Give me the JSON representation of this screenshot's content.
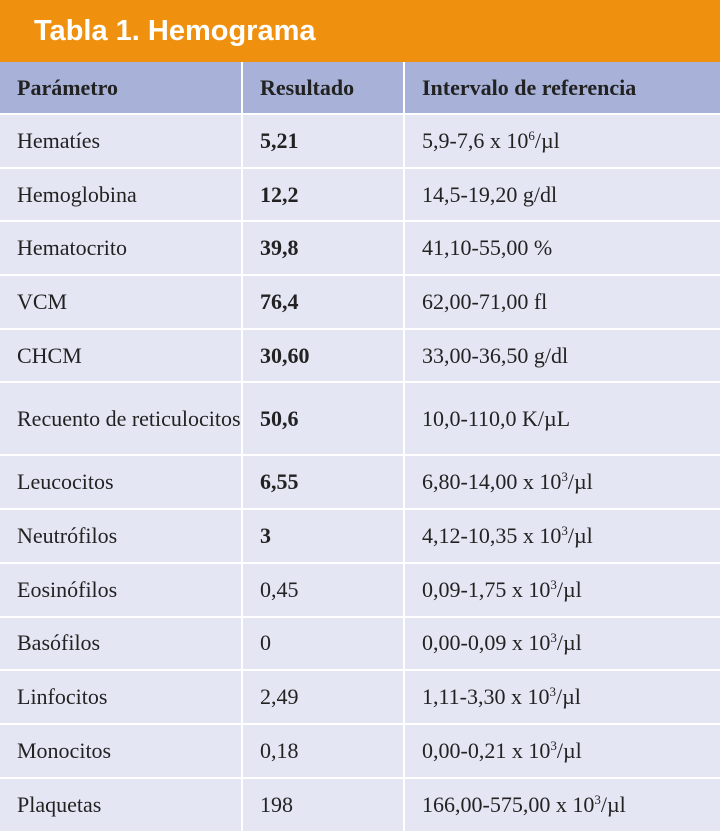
{
  "title": "Tabla 1. Hemograma",
  "headers": [
    "Parámetro",
    "Resultado",
    "Intervalo de referencia"
  ],
  "rows": [
    {
      "param": "Hematíes",
      "result": "5,21",
      "bold": true,
      "ref": "5,9-7,6 x 10",
      "exp": "6",
      "unit": "/µl"
    },
    {
      "param": "Hemoglobina",
      "result": "12,2",
      "bold": true,
      "ref": "14,5-19,20 g/dl",
      "exp": "",
      "unit": ""
    },
    {
      "param": "Hematocrito",
      "result": "39,8",
      "bold": true,
      "ref": "41,10-55,00 %",
      "exp": "",
      "unit": ""
    },
    {
      "param": "VCM",
      "result": "76,4",
      "bold": true,
      "ref": "62,00-71,00 fl",
      "exp": "",
      "unit": ""
    },
    {
      "param": "CHCM",
      "result": "30,60",
      "bold": true,
      "ref": "33,00-36,50 g/dl",
      "exp": "",
      "unit": ""
    },
    {
      "param": "Recuento de reticulocitos",
      "result": "50,6",
      "bold": true,
      "ref": "10,0-110,0 K/µL",
      "exp": "",
      "unit": "",
      "tall": true
    },
    {
      "param": "Leucocitos",
      "result": "6,55",
      "bold": true,
      "ref": "6,80-14,00 x 10",
      "exp": "3",
      "unit": "/µl"
    },
    {
      "param": "Neutrófilos",
      "result": "3",
      "bold": true,
      "ref": "4,12-10,35 x 10",
      "exp": "3",
      "unit": "/µl"
    },
    {
      "param": "Eosinófilos",
      "result": "0,45",
      "bold": false,
      "ref": "0,09-1,75 x 10",
      "exp": "3",
      "unit": "/µl"
    },
    {
      "param": "Basófilos",
      "result": "0",
      "bold": false,
      "ref": "0,00-0,09 x 10",
      "exp": "3",
      "unit": "/µl"
    },
    {
      "param": "Linfocitos",
      "result": "2,49",
      "bold": false,
      "ref": "1,11-3,30 x 10",
      "exp": "3",
      "unit": "/µl"
    },
    {
      "param": "Monocitos",
      "result": "0,18",
      "bold": false,
      "ref": "0,00-0,21 x 10",
      "exp": "3",
      "unit": "/µl"
    },
    {
      "param": "Plaquetas",
      "result": "198",
      "bold": false,
      "ref": "166,00-575,00 x 10",
      "exp": "3",
      "unit": "/µl"
    }
  ],
  "colors": {
    "title_bg": "#f0900f",
    "header_bg": "#a8b2d8",
    "row_bg": "#e4e6f3"
  }
}
